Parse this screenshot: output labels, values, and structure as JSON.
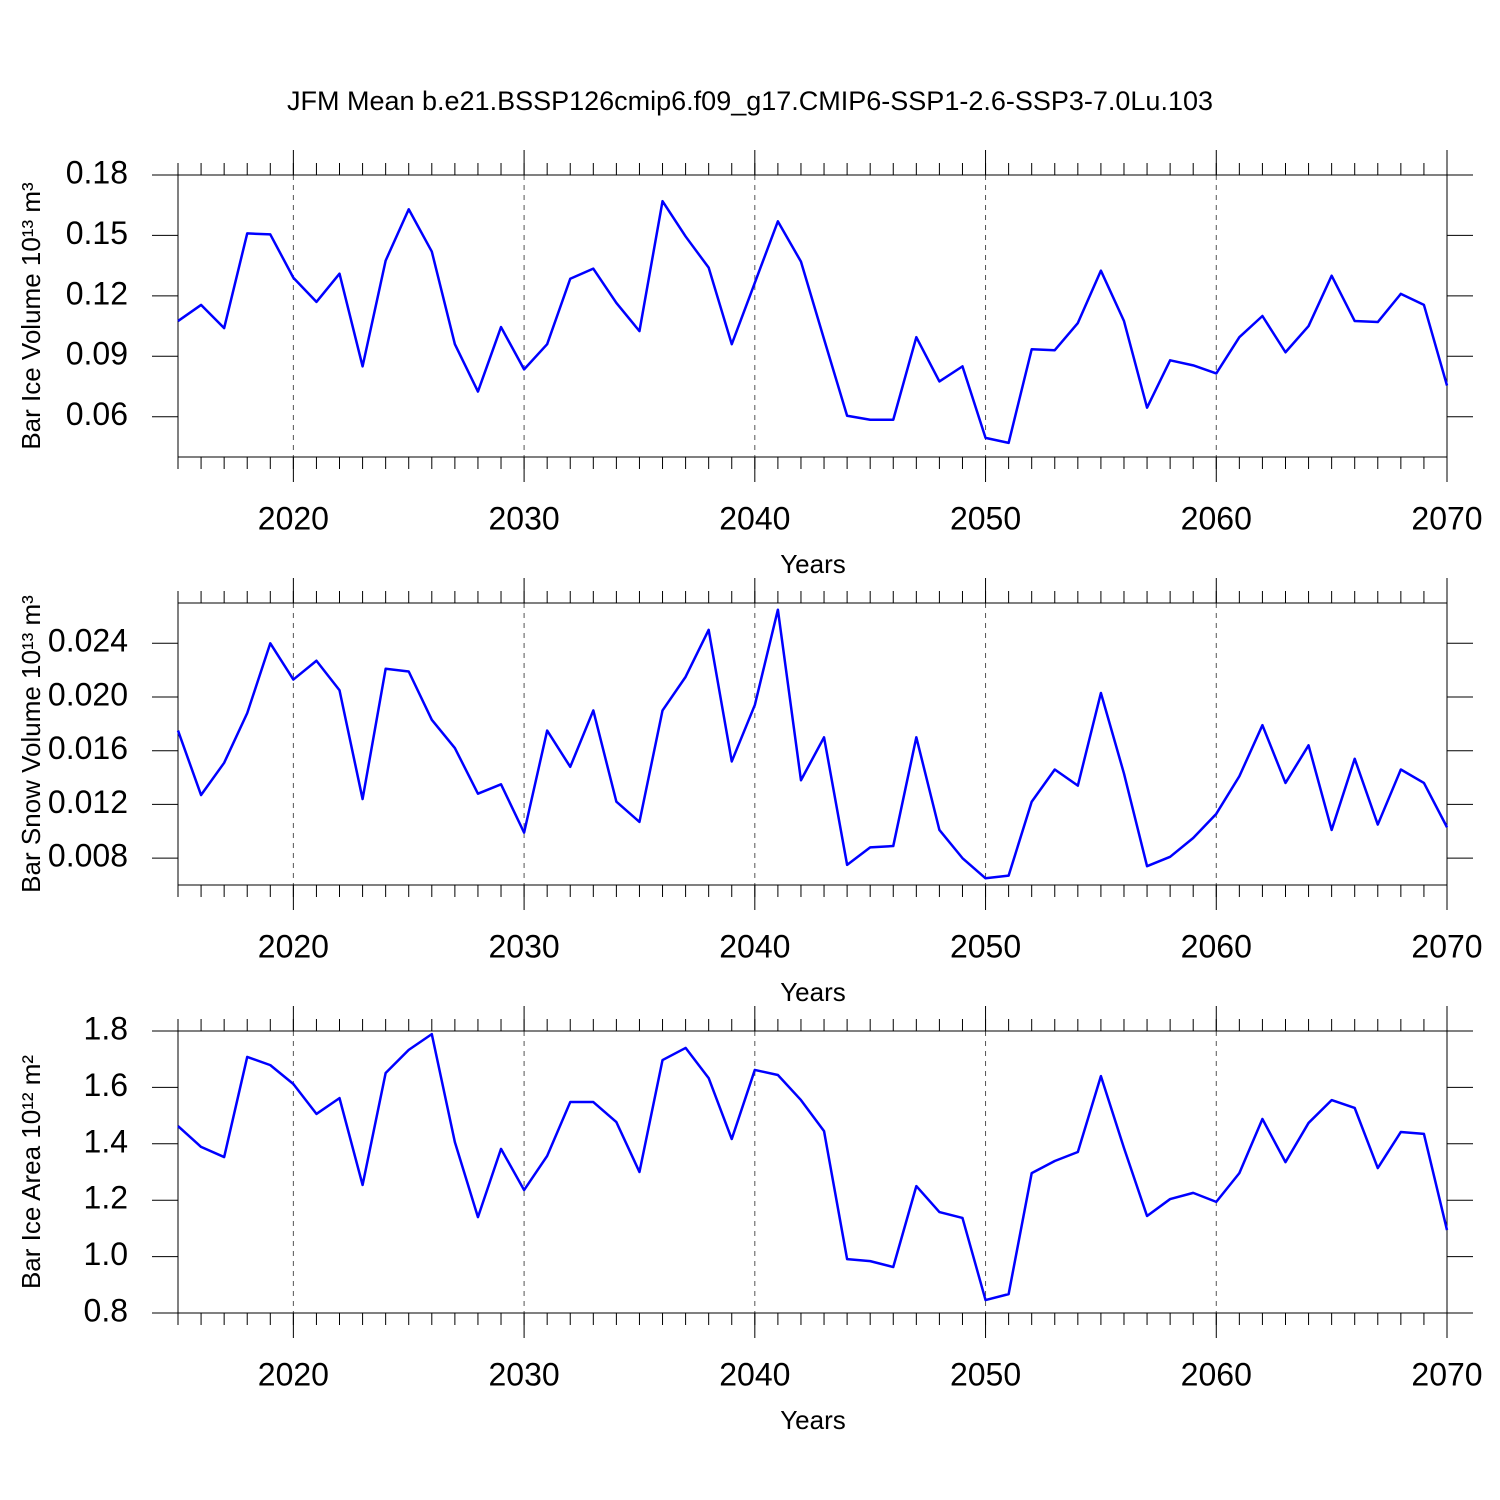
{
  "title": "JFM Mean b.e21.BSSP126cmip6.f09_g17.CMIP6-SSP1-2.6-SSP3-7.0Lu.103",
  "chart_data": [
    {
      "type": "line",
      "ylabel": "Bar Ice Volume 10¹³ m³",
      "xlabel": "Years",
      "x": [
        2015,
        2016,
        2017,
        2018,
        2019,
        2020,
        2021,
        2022,
        2023,
        2024,
        2025,
        2026,
        2027,
        2028,
        2029,
        2030,
        2031,
        2032,
        2033,
        2034,
        2035,
        2036,
        2037,
        2038,
        2039,
        2040,
        2041,
        2042,
        2043,
        2044,
        2045,
        2046,
        2047,
        2048,
        2049,
        2050,
        2051,
        2052,
        2053,
        2054,
        2055,
        2056,
        2057,
        2058,
        2059,
        2060,
        2061,
        2062,
        2063,
        2064,
        2065,
        2066,
        2067,
        2068,
        2069,
        2070
      ],
      "values": [
        0.1075,
        0.1155,
        0.104,
        0.151,
        0.1505,
        0.129,
        0.117,
        0.131,
        0.085,
        0.1375,
        0.163,
        0.142,
        0.096,
        0.0725,
        0.1045,
        0.0835,
        0.096,
        0.1285,
        0.1335,
        0.1165,
        0.1025,
        0.167,
        0.1495,
        0.134,
        0.096,
        0.1265,
        0.157,
        0.137,
        0.0985,
        0.0605,
        0.0585,
        0.0585,
        0.0995,
        0.0775,
        0.085,
        0.0495,
        0.047,
        0.0935,
        0.093,
        0.1065,
        0.1325,
        0.1075,
        0.0645,
        0.088,
        0.0855,
        0.0815,
        0.0995,
        0.11,
        0.092,
        0.105,
        0.13,
        0.1075,
        0.107,
        0.121,
        0.1155,
        0.0755
      ],
      "color": "#0000ff",
      "xlim": [
        2015,
        2070
      ],
      "xticks": [
        2020,
        2030,
        2040,
        2050,
        2060,
        2070
      ],
      "ylim": [
        0.04,
        0.18
      ],
      "yticks": [
        0.06,
        0.09,
        0.12,
        0.15,
        0.18
      ],
      "grid": true
    },
    {
      "type": "line",
      "ylabel": "Bar Snow Volume 10¹³ m³",
      "xlabel": "Years",
      "x": [
        2015,
        2016,
        2017,
        2018,
        2019,
        2020,
        2021,
        2022,
        2023,
        2024,
        2025,
        2026,
        2027,
        2028,
        2029,
        2030,
        2031,
        2032,
        2033,
        2034,
        2035,
        2036,
        2037,
        2038,
        2039,
        2040,
        2041,
        2042,
        2043,
        2044,
        2045,
        2046,
        2047,
        2048,
        2049,
        2050,
        2051,
        2052,
        2053,
        2054,
        2055,
        2056,
        2057,
        2058,
        2059,
        2060,
        2061,
        2062,
        2063,
        2064,
        2065,
        2066,
        2067,
        2068,
        2069,
        2070
      ],
      "values": [
        0.0175,
        0.0127,
        0.0151,
        0.0188,
        0.024,
        0.0213,
        0.0227,
        0.0205,
        0.0124,
        0.0221,
        0.0219,
        0.0183,
        0.0162,
        0.0128,
        0.0135,
        0.0099,
        0.0175,
        0.0148,
        0.019,
        0.0122,
        0.0107,
        0.019,
        0.0215,
        0.025,
        0.0152,
        0.0194,
        0.0265,
        0.0138,
        0.017,
        0.0075,
        0.0088,
        0.0089,
        0.017,
        0.0101,
        0.008,
        0.0065,
        0.0067,
        0.0122,
        0.0146,
        0.0134,
        0.0203,
        0.0143,
        0.0074,
        0.0081,
        0.0095,
        0.0113,
        0.0141,
        0.0179,
        0.0136,
        0.0164,
        0.0101,
        0.0154,
        0.0105,
        0.0146,
        0.0136,
        0.0103
      ],
      "color": "#0000ff",
      "xlim": [
        2015,
        2070
      ],
      "xticks": [
        2020,
        2030,
        2040,
        2050,
        2060,
        2070
      ],
      "ylim": [
        0.006,
        0.027
      ],
      "yticks": [
        0.008,
        0.012,
        0.016,
        {
          "value": 0.02,
          "label": "0.020"
        },
        0.024
      ],
      "grid": true
    },
    {
      "type": "line",
      "ylabel": "Bar Ice Area 10¹² m²",
      "xlabel": "Years",
      "x": [
        2015,
        2016,
        2017,
        2018,
        2019,
        2020,
        2021,
        2022,
        2023,
        2024,
        2025,
        2026,
        2027,
        2028,
        2029,
        2030,
        2031,
        2032,
        2033,
        2034,
        2035,
        2036,
        2037,
        2038,
        2039,
        2040,
        2041,
        2042,
        2043,
        2044,
        2045,
        2046,
        2047,
        2048,
        2049,
        2050,
        2051,
        2052,
        2053,
        2054,
        2055,
        2056,
        2057,
        2058,
        2059,
        2060,
        2061,
        2062,
        2063,
        2064,
        2065,
        2066,
        2067,
        2068,
        2069,
        2070
      ],
      "values": [
        1.463,
        1.389,
        1.353,
        1.708,
        1.679,
        1.612,
        1.506,
        1.562,
        1.254,
        1.651,
        1.733,
        1.789,
        1.406,
        1.14,
        1.382,
        1.236,
        1.357,
        1.548,
        1.548,
        1.477,
        1.3,
        1.697,
        1.74,
        1.633,
        1.417,
        1.662,
        1.644,
        1.555,
        1.445,
        0.991,
        0.984,
        0.963,
        1.25,
        1.158,
        1.137,
        0.846,
        0.867,
        1.296,
        1.339,
        1.371,
        1.64,
        1.385,
        1.144,
        1.204,
        1.226,
        1.194,
        1.296,
        1.488,
        1.335,
        1.474,
        1.555,
        1.527,
        1.314,
        1.442,
        1.435,
        1.094
      ],
      "color": "#0000ff",
      "xlim": [
        2015,
        2070
      ],
      "xticks": [
        2020,
        2030,
        2040,
        2050,
        2060,
        2070
      ],
      "ylim": [
        0.8,
        1.8
      ],
      "yticks": [
        0.8,
        {
          "value": 1.0,
          "label": "1.0"
        },
        1.2,
        1.4,
        1.6,
        1.8
      ],
      "grid": true
    }
  ]
}
